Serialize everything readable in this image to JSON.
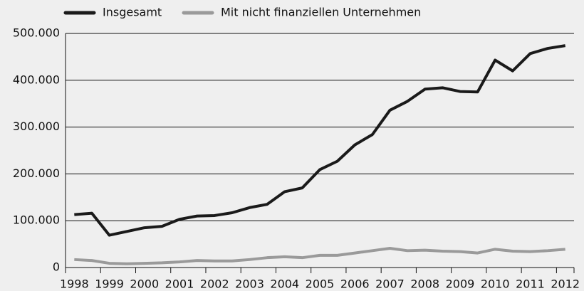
{
  "chart_data": {
    "type": "line",
    "categories": [
      "1998",
      null,
      "1999",
      null,
      "2000",
      null,
      "2001",
      null,
      "2002",
      null,
      "2003",
      null,
      "2004",
      null,
      "2005",
      null,
      "2006",
      null,
      "2007",
      null,
      "2008",
      null,
      "2009",
      null,
      "2010",
      null,
      "2011",
      null,
      "2012"
    ],
    "series": [
      {
        "name": "Insgesamt",
        "color": "#1a1a1a",
        "values": [
          113000,
          116000,
          69000,
          77000,
          85000,
          88000,
          103000,
          110000,
          111000,
          117000,
          128000,
          135000,
          162000,
          170000,
          209000,
          227000,
          262000,
          284000,
          336000,
          355000,
          381000,
          384000,
          376000,
          375000,
          443000,
          420000,
          457000,
          468000,
          474000
        ]
      },
      {
        "name": "Mit nicht finanziellen Unternehmen",
        "color": "#9a9a9a",
        "values": [
          17000,
          15000,
          9000,
          8000,
          9000,
          10000,
          12000,
          15000,
          14000,
          14000,
          17000,
          21000,
          23000,
          21000,
          26000,
          26000,
          31000,
          36000,
          41000,
          36000,
          37000,
          35000,
          34000,
          31000,
          39000,
          35000,
          34000,
          36000,
          39000
        ]
      }
    ],
    "ylim": [
      0,
      500000
    ],
    "yticks": [
      0,
      {
        "value": 100000,
        "label": "100.000"
      },
      {
        "value": 200000,
        "label": "200.000"
      },
      {
        "value": 300000,
        "label": "300.000"
      },
      {
        "value": 400000,
        "label": "400.000"
      },
      {
        "value": 500000,
        "label": "500.000"
      }
    ],
    "grid": true
  }
}
